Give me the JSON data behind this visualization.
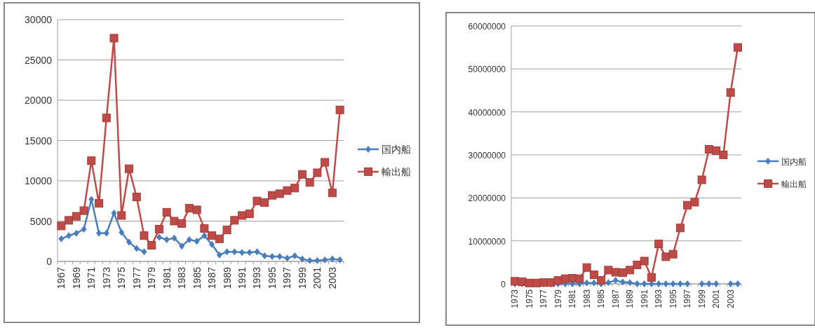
{
  "chart_data": [
    {
      "type": "line",
      "categories": [
        "1967",
        null,
        "1969",
        null,
        "1971",
        null,
        "1973",
        null,
        "1975",
        null,
        "1977",
        null,
        "1979",
        null,
        "1981",
        null,
        "1983",
        null,
        "1985",
        null,
        "1987",
        null,
        "1989",
        null,
        "1991",
        null,
        "1993",
        null,
        "1995",
        null,
        "1997",
        null,
        "1999",
        null,
        "2001",
        null,
        "2003",
        null
      ],
      "series": [
        {
          "name": "国内船",
          "color": "#4a7ebb",
          "marker": "diamond",
          "values": [
            2800,
            3200,
            3500,
            4000,
            7700,
            3500,
            3500,
            6000,
            3600,
            2400,
            1600,
            1200,
            null,
            3000,
            2700,
            2900,
            1900,
            2700,
            2500,
            3200,
            2100,
            800,
            1200,
            1200,
            1100,
            1100,
            1200,
            700,
            600,
            600,
            400,
            700,
            300,
            100,
            100,
            200,
            300,
            200
          ]
        },
        {
          "name": "輸出船",
          "color": "#be4b48",
          "marker": "square",
          "values": [
            4400,
            5100,
            5600,
            6300,
            12500,
            7200,
            17800,
            27700,
            5700,
            11500,
            8000,
            3200,
            2000,
            4000,
            6100,
            5000,
            4700,
            6600,
            6400,
            4100,
            3200,
            2800,
            3900,
            5100,
            5700,
            5900,
            7500,
            7300,
            8200,
            8400,
            8800,
            9100,
            10800,
            9800,
            11000,
            12300,
            8500,
            18800
          ]
        }
      ],
      "ylim": [
        0,
        30000
      ],
      "yticks": [
        0,
        5000,
        10000,
        15000,
        20000,
        25000,
        30000
      ],
      "grid": "y",
      "legend": "right"
    },
    {
      "type": "line",
      "categories": [
        "1973",
        null,
        "1975",
        null,
        "1977",
        null,
        "1979",
        null,
        "1981",
        null,
        "1983",
        null,
        "1985",
        null,
        "1987",
        null,
        "1989",
        null,
        "1991",
        null,
        "1993",
        null,
        "1995",
        null,
        "1997",
        null,
        "1999",
        null,
        "2001",
        null,
        "2003",
        null
      ],
      "series": [
        {
          "name": "国内船",
          "color": "#4a7ebb",
          "marker": "diamond",
          "values": [
            0,
            0,
            0,
            0,
            0,
            0,
            0,
            0,
            0,
            0,
            200000,
            200000,
            0,
            300000,
            800000,
            400000,
            300000,
            0,
            0,
            0,
            0,
            0,
            0,
            0,
            0,
            null,
            0,
            0,
            0,
            null,
            0,
            0
          ]
        },
        {
          "name": "輸出船",
          "color": "#be4b48",
          "marker": "square",
          "values": [
            600000,
            500000,
            200000,
            200000,
            300000,
            300000,
            800000,
            1200000,
            1300000,
            1200000,
            3800000,
            2100000,
            800000,
            3200000,
            2700000,
            2600000,
            3200000,
            4400000,
            5300000,
            1500000,
            9300000,
            6300000,
            6900000,
            13000000,
            18300000,
            19000000,
            24200000,
            31300000,
            31000000,
            30000000,
            44500000,
            55000000
          ]
        }
      ],
      "ylim": [
        0,
        60000000
      ],
      "yticks": [
        0,
        10000000,
        20000000,
        30000000,
        40000000,
        50000000,
        60000000
      ],
      "grid": "y",
      "legend": "right"
    }
  ]
}
